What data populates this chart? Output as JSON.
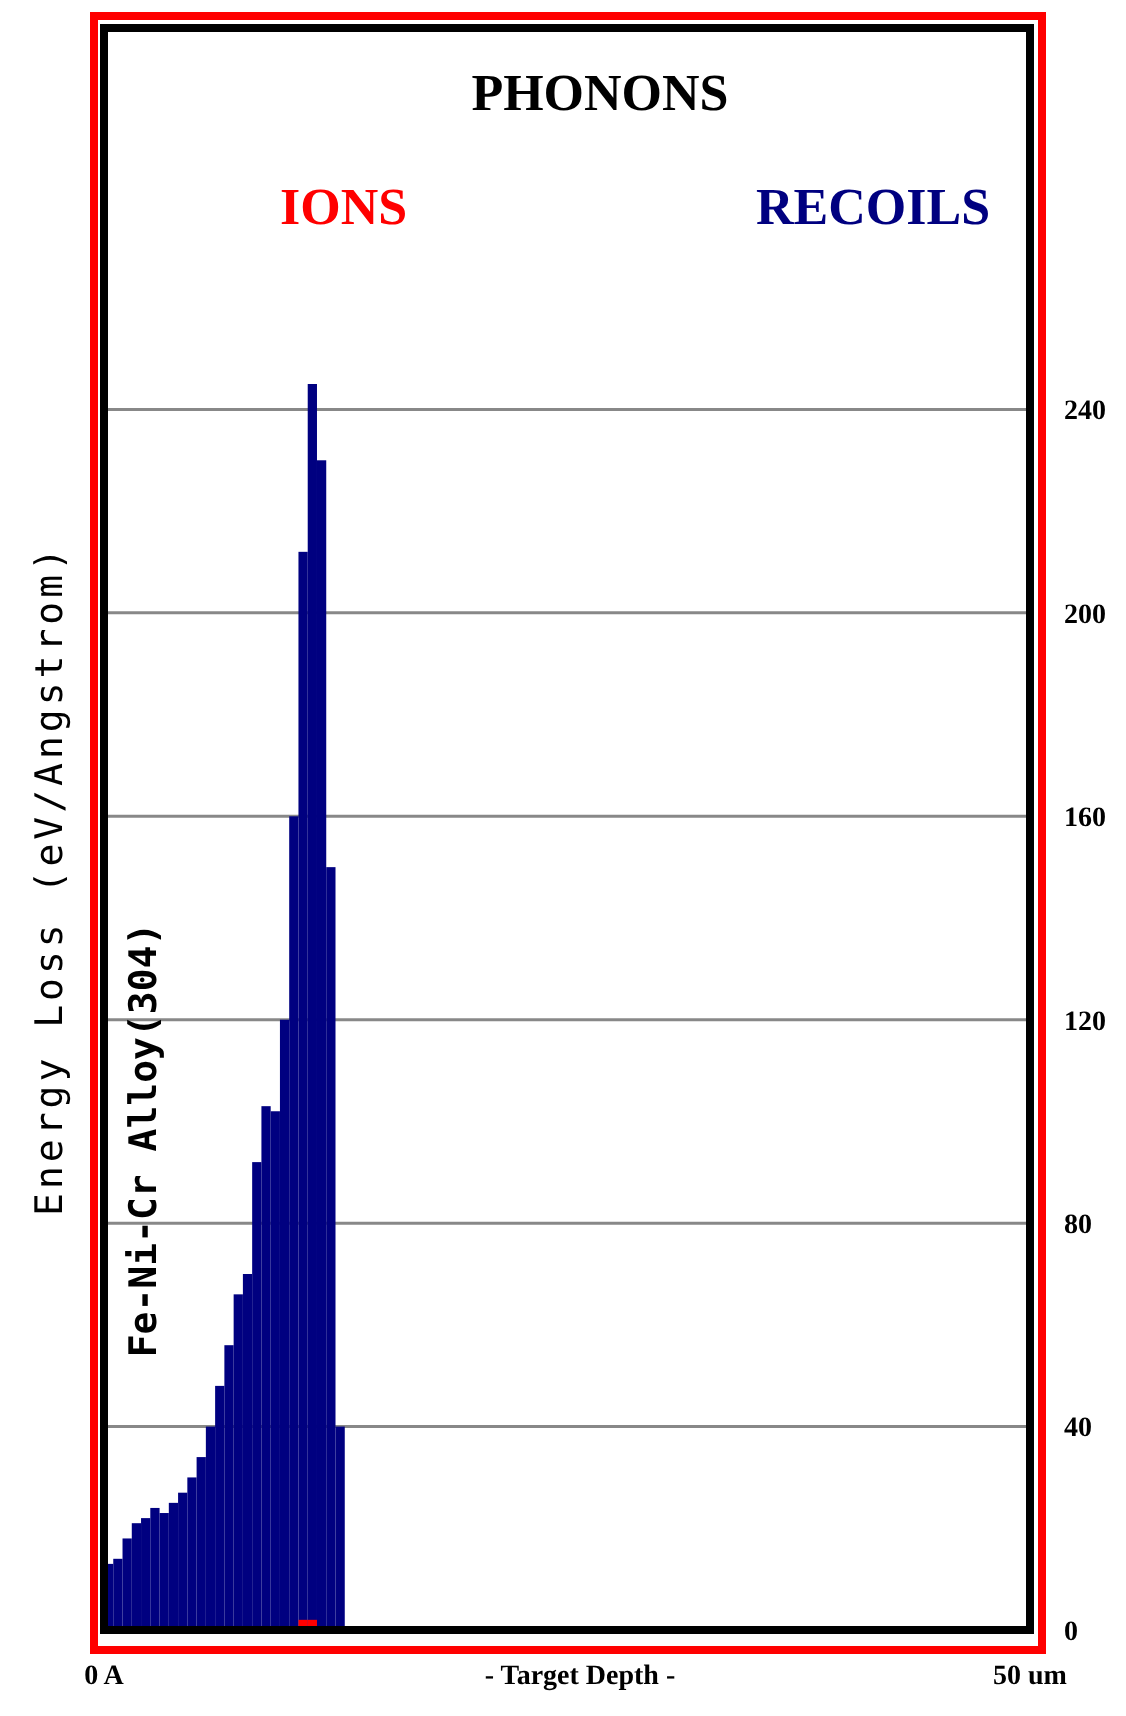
{
  "chart_data": {
    "type": "histogram",
    "title": "PHONONS",
    "xlabel": "- Target Depth -",
    "ylabel": "Energy Loss (eV/Angstrom)",
    "annotations": [
      "Fe-Ni-Cr Alloy(304)"
    ],
    "bins": [
      0,
      0.5,
      1,
      1.5,
      2,
      2.5,
      3,
      3.5,
      4,
      4.5,
      5,
      5.5,
      6,
      6.5,
      7,
      7.5,
      8,
      8.5,
      9,
      9.5,
      10,
      10.5,
      11,
      11.5,
      12,
      12.5,
      13
    ],
    "series": [
      {
        "name": "RECOILS",
        "color": "#000080",
        "values": [
          13,
          14,
          18,
          21,
          22,
          24,
          23,
          25,
          27,
          30,
          34,
          40,
          48,
          56,
          66,
          70,
          92,
          103,
          102,
          120,
          160,
          212,
          245,
          230,
          150,
          40
        ]
      },
      {
        "name": "IONS",
        "color": "#ff0000",
        "values": [
          0,
          0,
          0,
          0,
          0,
          0,
          0,
          0,
          0,
          0,
          0,
          0,
          0,
          0,
          0,
          0,
          0,
          0,
          0,
          0,
          0,
          2,
          2,
          0,
          0,
          0
        ]
      }
    ],
    "xlim": [
      0,
      50
    ],
    "xticks": [
      {
        "value": 0,
        "label": "0 A"
      },
      {
        "value": 50,
        "label": "50 um"
      }
    ],
    "ylim": [
      0,
      315
    ],
    "yticks": [
      0,
      40,
      80,
      120,
      160,
      200,
      240
    ],
    "grid": "y",
    "legend": "top"
  }
}
